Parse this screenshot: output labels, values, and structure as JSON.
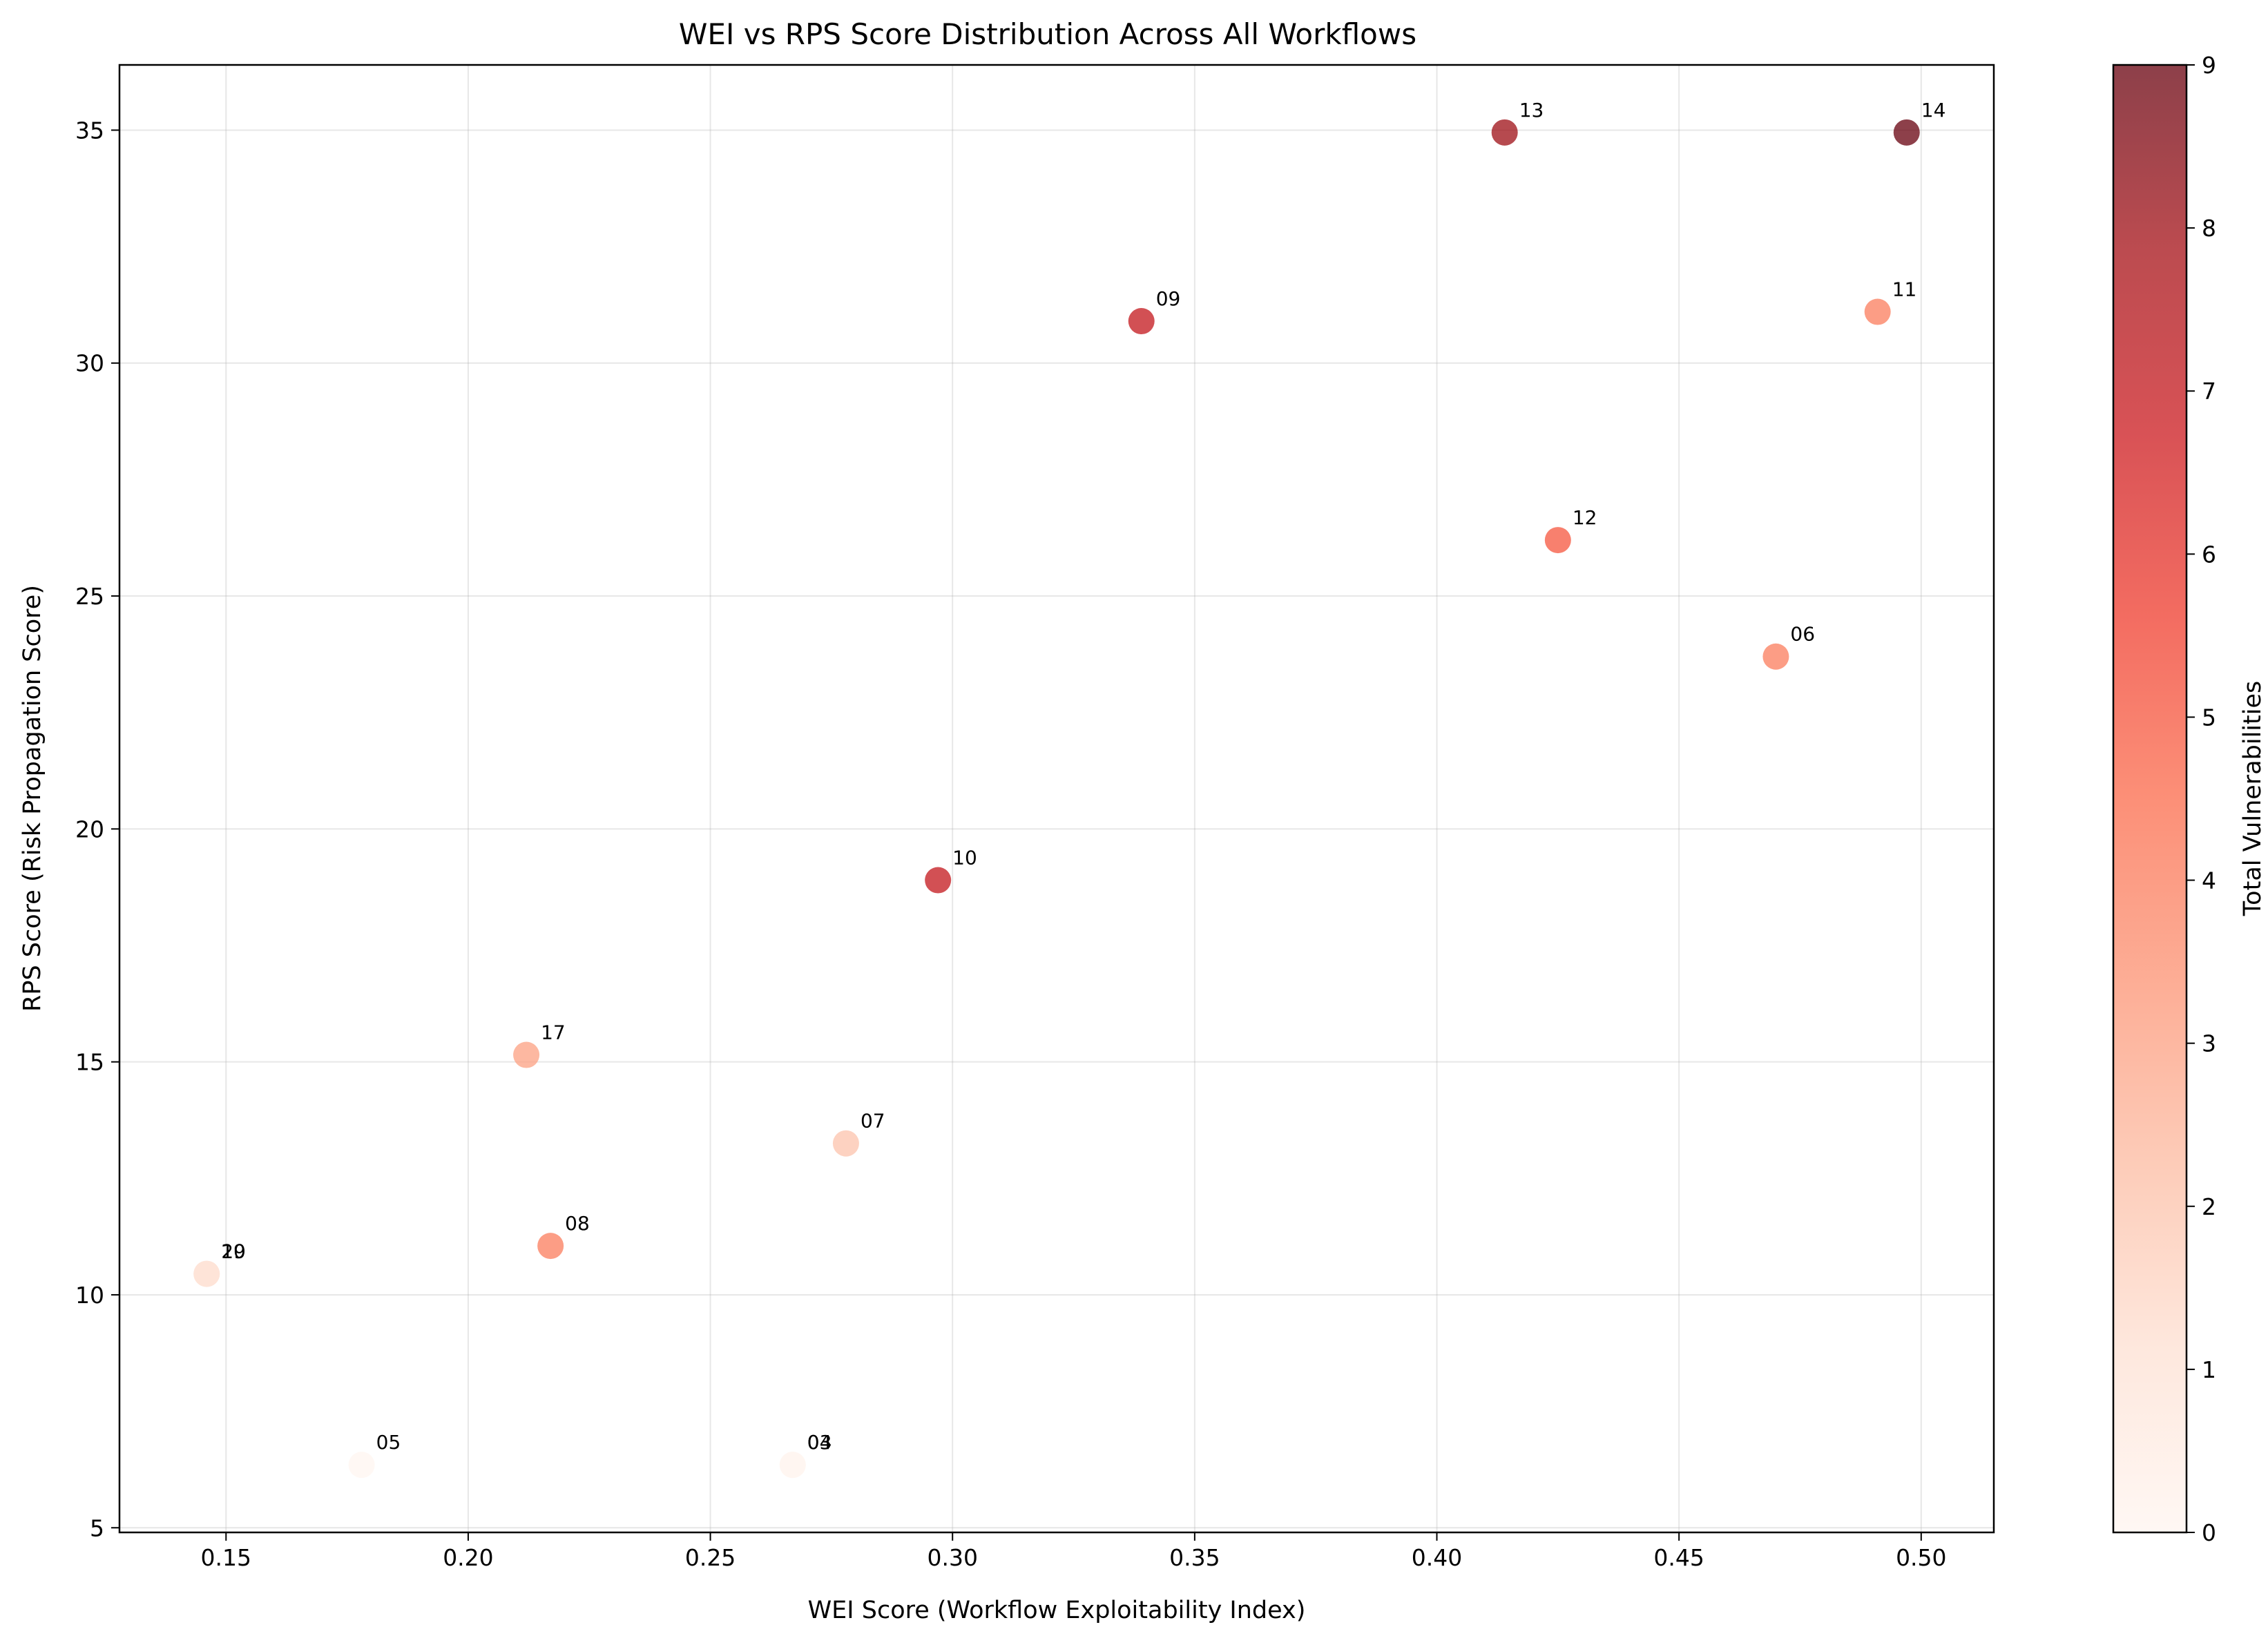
{
  "chart_data": {
    "type": "scatter",
    "title": "WEI vs RPS Score Distribution Across All Workflows",
    "xlabel": "WEI Score (Workflow Exploitability Index)",
    "ylabel": "RPS Score (Risk Propagation Score)",
    "colorbar_label": "Total Vulnerabilities",
    "xlim": [
      0.128,
      0.515
    ],
    "ylim": [
      4.9,
      36.4
    ],
    "xticks": [
      0.15,
      0.2,
      0.25,
      0.3,
      0.35,
      0.4,
      0.45,
      0.5
    ],
    "xtick_labels": [
      "0.15",
      "0.20",
      "0.25",
      "0.30",
      "0.35",
      "0.40",
      "0.45",
      "0.50"
    ],
    "yticks": [
      5,
      10,
      15,
      20,
      25,
      30,
      35
    ],
    "ytick_labels": [
      "5",
      "10",
      "15",
      "20",
      "25",
      "30",
      "35"
    ],
    "colorbar_range": [
      0,
      9
    ],
    "colorbar_ticks": [
      "0",
      "1",
      "2",
      "3",
      "4",
      "5",
      "6",
      "7",
      "8",
      "9"
    ],
    "colormap": "Reds",
    "grid": true,
    "points": [
      {
        "label": "13",
        "x": 0.414,
        "y": 34.95,
        "vulns": 8
      },
      {
        "label": "14",
        "x": 0.497,
        "y": 34.95,
        "vulns": 9
      },
      {
        "label": "09",
        "x": 0.339,
        "y": 30.9,
        "vulns": 7
      },
      {
        "label": "11",
        "x": 0.491,
        "y": 31.1,
        "vulns": 4
      },
      {
        "label": "12",
        "x": 0.425,
        "y": 26.2,
        "vulns": 5
      },
      {
        "label": "06",
        "x": 0.47,
        "y": 23.7,
        "vulns": 4
      },
      {
        "label": "10",
        "x": 0.297,
        "y": 18.9,
        "vulns": 7
      },
      {
        "label": "17",
        "x": 0.212,
        "y": 15.15,
        "vulns": 3
      },
      {
        "label": "07",
        "x": 0.278,
        "y": 13.25,
        "vulns": 2
      },
      {
        "label": "08",
        "x": 0.217,
        "y": 11.05,
        "vulns": 4
      },
      {
        "label": "19",
        "x": 0.146,
        "y": 10.45,
        "vulns": 1
      },
      {
        "label": "20",
        "x": 0.146,
        "y": 10.45,
        "vulns": 1
      },
      {
        "label": "05",
        "x": 0.178,
        "y": 6.35,
        "vulns": 0
      },
      {
        "label": "03",
        "x": 0.267,
        "y": 6.35,
        "vulns": 0
      },
      {
        "label": "04",
        "x": 0.267,
        "y": 6.35,
        "vulns": 0
      }
    ]
  }
}
